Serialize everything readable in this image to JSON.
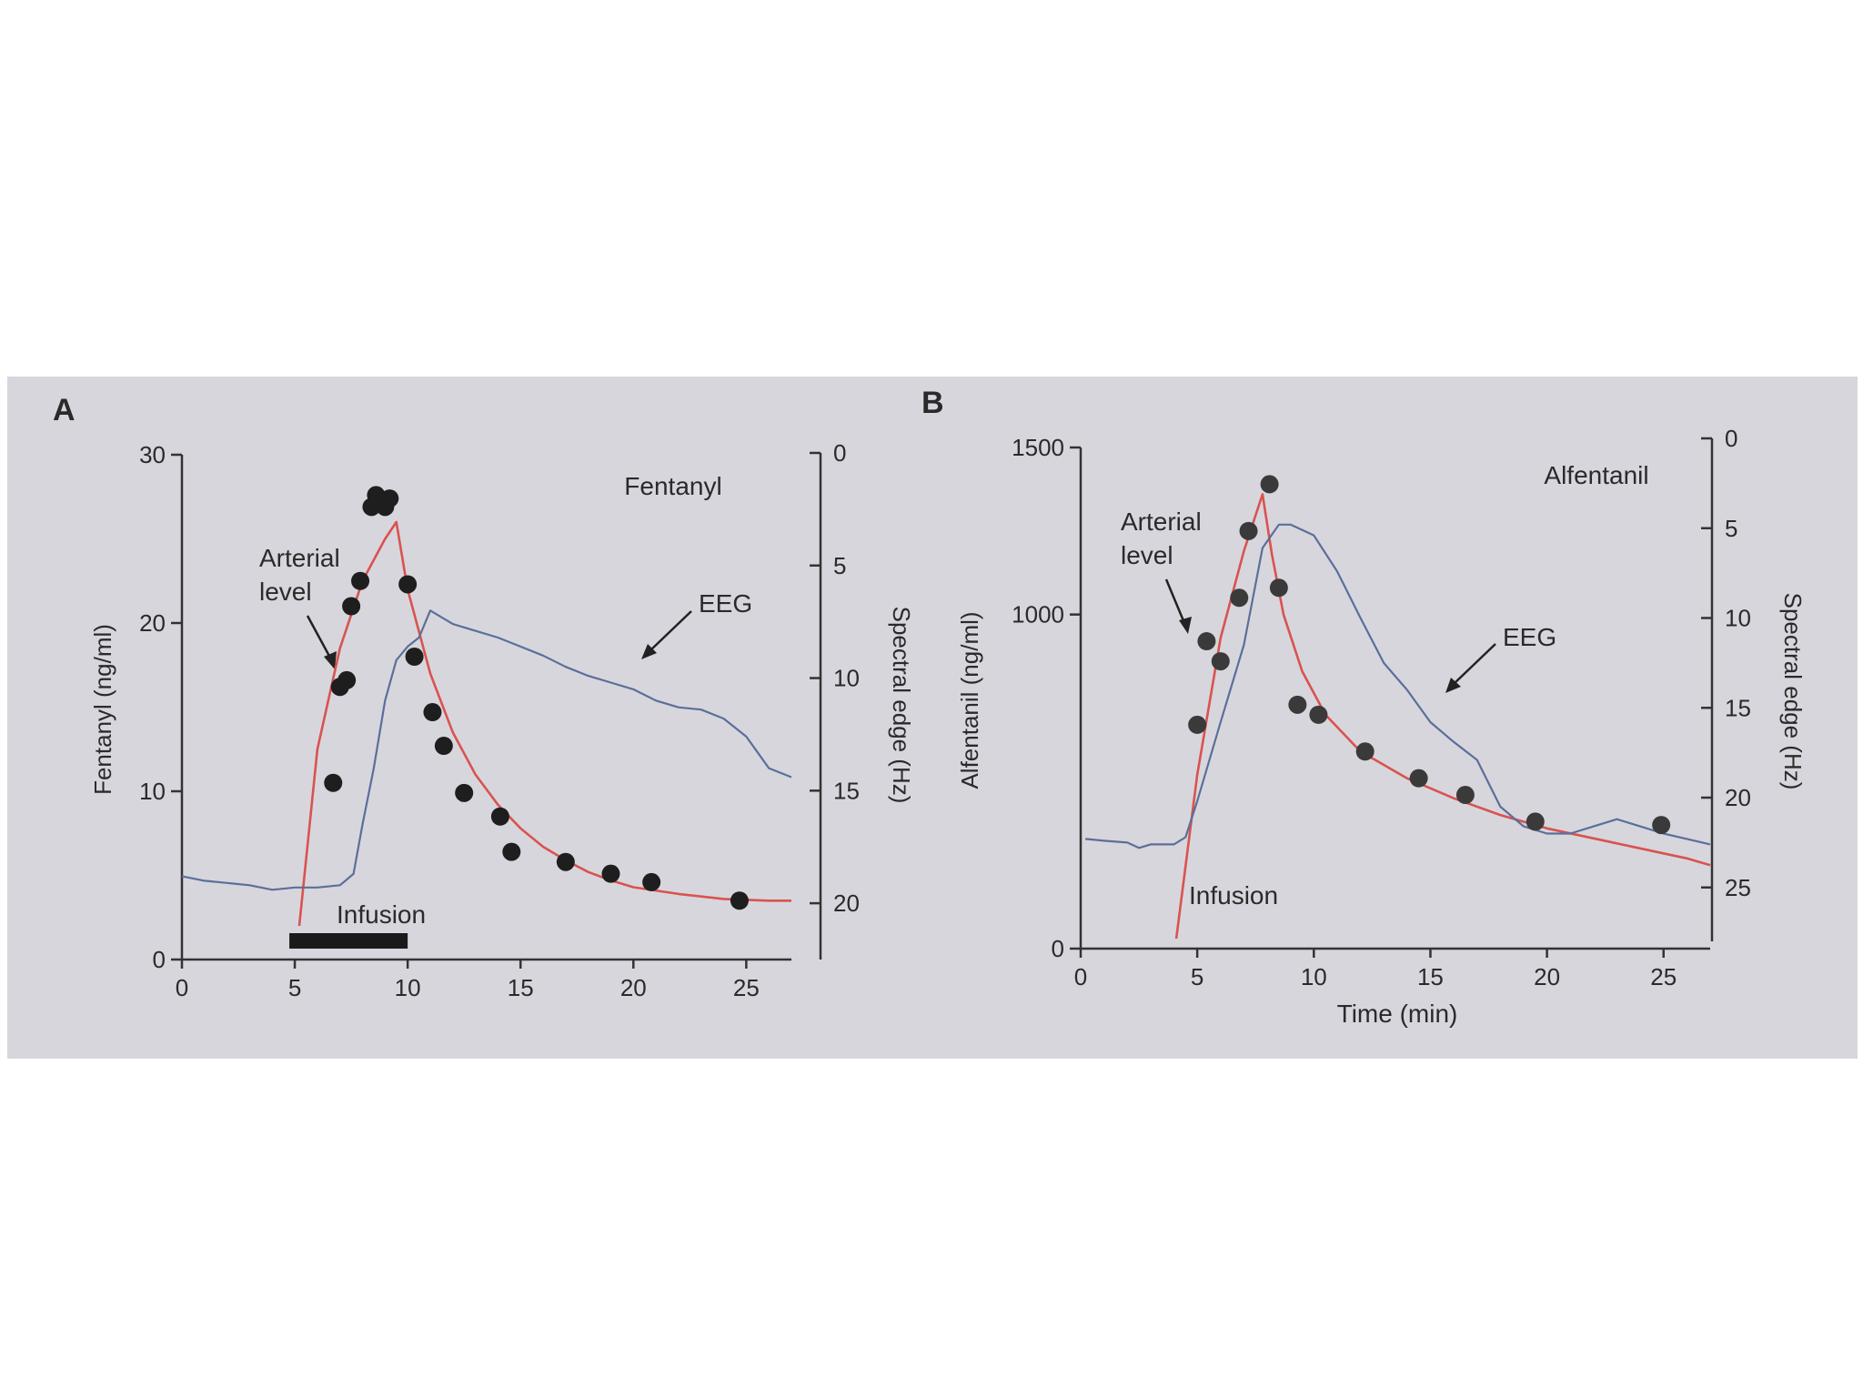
{
  "chart_data": [
    {
      "panel_label": "A",
      "type": "line+scatter",
      "title": "Fentanyl",
      "xlabel": "",
      "ylabel": "Fentanyl (ng/ml)",
      "y2label": "Spectral edge (Hz)",
      "xlim": [
        0,
        27
      ],
      "ylim": [
        0,
        30
      ],
      "y2lim": [
        0,
        22.5
      ],
      "y2_inverted": true,
      "xticks": [
        "0",
        "5",
        "10",
        "15",
        "20",
        "25"
      ],
      "yticks": [
        "0",
        "10",
        "20",
        "30"
      ],
      "y2ticks": [
        "0",
        "5",
        "10",
        "15",
        "20"
      ],
      "annotations": {
        "arterial": [
          "Arterial",
          "level"
        ],
        "eeg": "EEG",
        "infusion": "Infusion"
      },
      "infusion": [
        5,
        10
      ],
      "series": [
        {
          "name": "Arterial level",
          "kind": "line",
          "axis": "left",
          "color": "#d9534f",
          "x": [
            5.2,
            6,
            7,
            8,
            9,
            9.5,
            10,
            11,
            12,
            13,
            14,
            15,
            16,
            17,
            18,
            19,
            20,
            22,
            24,
            26,
            27
          ],
          "y": [
            2,
            12.5,
            18.5,
            22.5,
            25,
            26,
            22,
            17,
            13.5,
            11,
            9.2,
            7.8,
            6.7,
            5.9,
            5.2,
            4.7,
            4.3,
            3.9,
            3.6,
            3.5,
            3.5
          ]
        },
        {
          "name": "EEG",
          "kind": "line",
          "axis": "right",
          "color": "#5a6f9a",
          "x": [
            0,
            1,
            2,
            3,
            4,
            5,
            6,
            7,
            7.6,
            8,
            8.5,
            9,
            9.5,
            10,
            10.5,
            11,
            11.5,
            12,
            13,
            14,
            15,
            16,
            17,
            18,
            19,
            20,
            21,
            22,
            23,
            24,
            25,
            25.5,
            26,
            27
          ],
          "y": [
            18.8,
            19.0,
            19.1,
            19.2,
            19.4,
            19.3,
            19.3,
            19.2,
            18.7,
            16.5,
            14.0,
            11.0,
            9.2,
            8.6,
            8.2,
            7.0,
            7.3,
            7.6,
            7.9,
            8.2,
            8.6,
            9.0,
            9.5,
            9.9,
            10.2,
            10.5,
            11.0,
            11.3,
            11.4,
            11.8,
            12.6,
            13.3,
            14.0,
            14.4
          ]
        },
        {
          "name": "Measured arterial",
          "kind": "scatter",
          "axis": "left",
          "color": "#1e1e1e",
          "x": [
            6.7,
            7.0,
            7.3,
            7.5,
            7.9,
            8.4,
            8.6,
            9.0,
            9.2,
            10.0,
            10.3,
            11.1,
            11.6,
            12.5,
            14.1,
            14.6,
            17.0,
            19.0,
            20.8,
            24.7
          ],
          "y": [
            10.5,
            16.2,
            16.6,
            21.0,
            22.5,
            26.9,
            27.6,
            26.9,
            27.4,
            22.3,
            18.0,
            14.7,
            12.7,
            9.9,
            8.5,
            6.4,
            5.8,
            5.1,
            4.6,
            3.5
          ]
        }
      ]
    },
    {
      "panel_label": "B",
      "type": "line+scatter",
      "title": "Alfentanil",
      "xlabel": "Time (min)",
      "ylabel": "Alfentanil (ng/ml)",
      "y2label": "Spectral edge (Hz)",
      "xlim": [
        0,
        27
      ],
      "ylim": [
        0,
        1500
      ],
      "y2lim": [
        0,
        28
      ],
      "y2_inverted": true,
      "xticks": [
        "0",
        "5",
        "10",
        "15",
        "20",
        "25"
      ],
      "yticks": [
        "0",
        "1000",
        "1500"
      ],
      "y2ticks": [
        "0",
        "5",
        "10",
        "15",
        "20",
        "25"
      ],
      "annotations": {
        "arterial": [
          "Arterial",
          "level"
        ],
        "eeg": "EEG",
        "infusion": "Infusion"
      },
      "series": [
        {
          "name": "Arterial level",
          "kind": "line",
          "axis": "left",
          "color": "#d9534f",
          "x": [
            4.1,
            5,
            6,
            7,
            7.8,
            8.2,
            8.7,
            9.5,
            10.5,
            12,
            14,
            16,
            18,
            20,
            22,
            24,
            26,
            27
          ],
          "y": [
            30,
            520,
            930,
            1190,
            1360,
            1180,
            1000,
            830,
            700,
            590,
            510,
            450,
            400,
            360,
            330,
            300,
            270,
            250
          ]
        },
        {
          "name": "EEG",
          "kind": "line",
          "axis": "right",
          "color": "#5a6f9a",
          "x": [
            0.2,
            1,
            2,
            2.5,
            3,
            4,
            4.5,
            5,
            6,
            7,
            7.8,
            8.5,
            9,
            10,
            11,
            12,
            13,
            14,
            15,
            16,
            17,
            18,
            19,
            20,
            21,
            22,
            23,
            24,
            25,
            26,
            27
          ],
          "y": [
            22.3,
            22.4,
            22.5,
            22.8,
            22.6,
            22.6,
            22.2,
            20.2,
            15.8,
            11.5,
            6.1,
            4.8,
            4.8,
            5.4,
            7.4,
            10.0,
            12.5,
            14.0,
            15.8,
            16.9,
            17.9,
            20.5,
            21.6,
            22.0,
            22.0,
            21.6,
            21.2,
            21.6,
            22.0,
            22.3,
            22.6
          ]
        },
        {
          "name": "Measured arterial",
          "kind": "scatter",
          "axis": "left",
          "color": "#3a3a3a",
          "x": [
            5.0,
            5.4,
            6.0,
            6.8,
            7.2,
            8.1,
            8.5,
            9.3,
            10.2,
            12.2,
            14.5,
            16.5,
            19.5,
            24.9
          ],
          "y": [
            670,
            920,
            860,
            1050,
            1250,
            1390,
            1080,
            730,
            700,
            590,
            510,
            460,
            380,
            370
          ]
        }
      ]
    }
  ]
}
